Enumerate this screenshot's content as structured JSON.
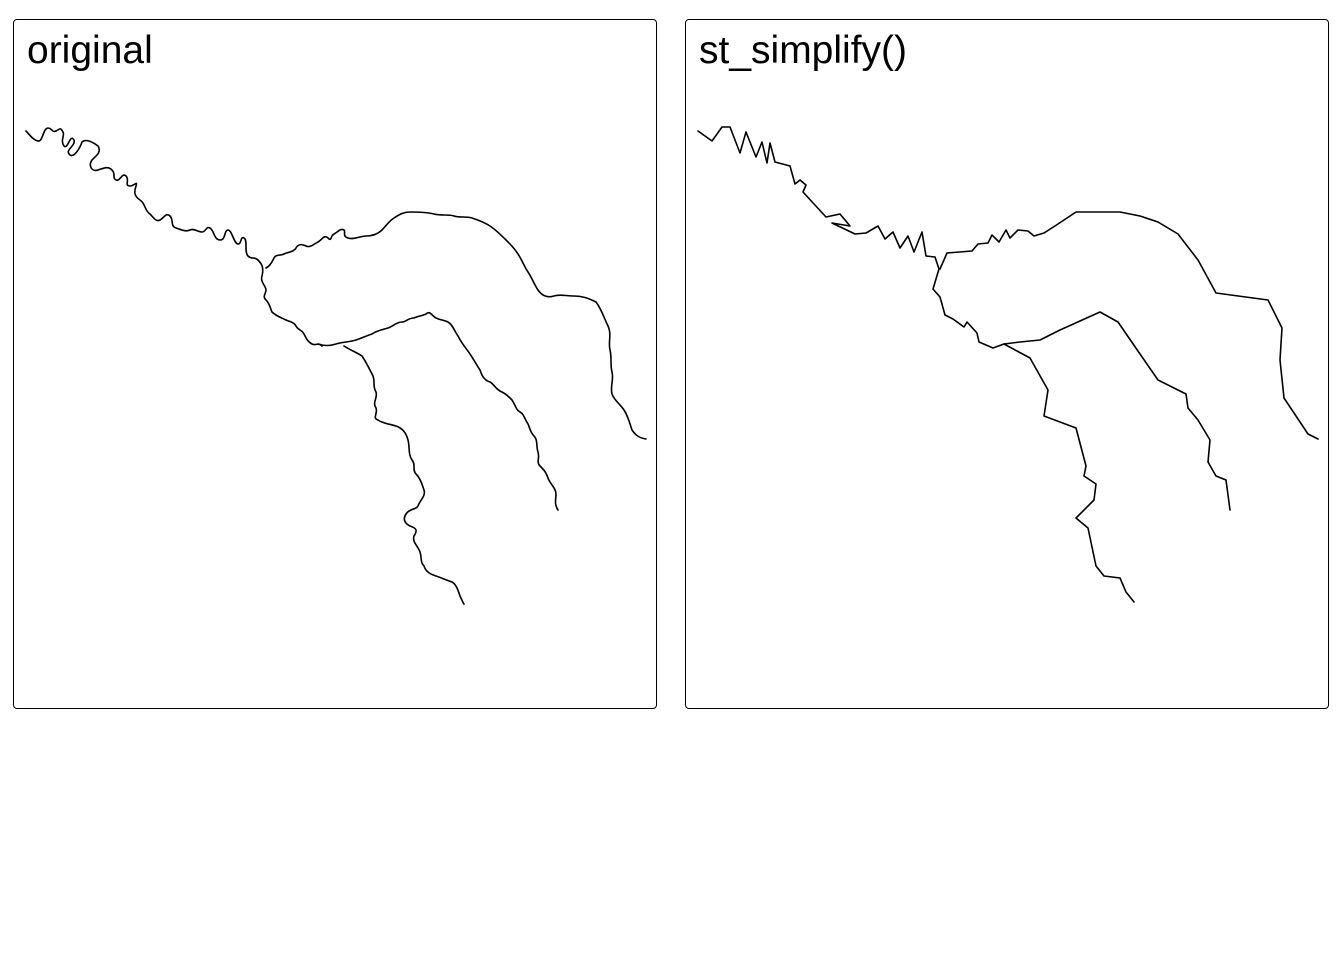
{
  "panels": [
    {
      "title": "original"
    },
    {
      "title": "st_simplify()"
    }
  ],
  "colors": {
    "line": "#000000",
    "frame": "#000000",
    "background": "#ffffff"
  }
}
